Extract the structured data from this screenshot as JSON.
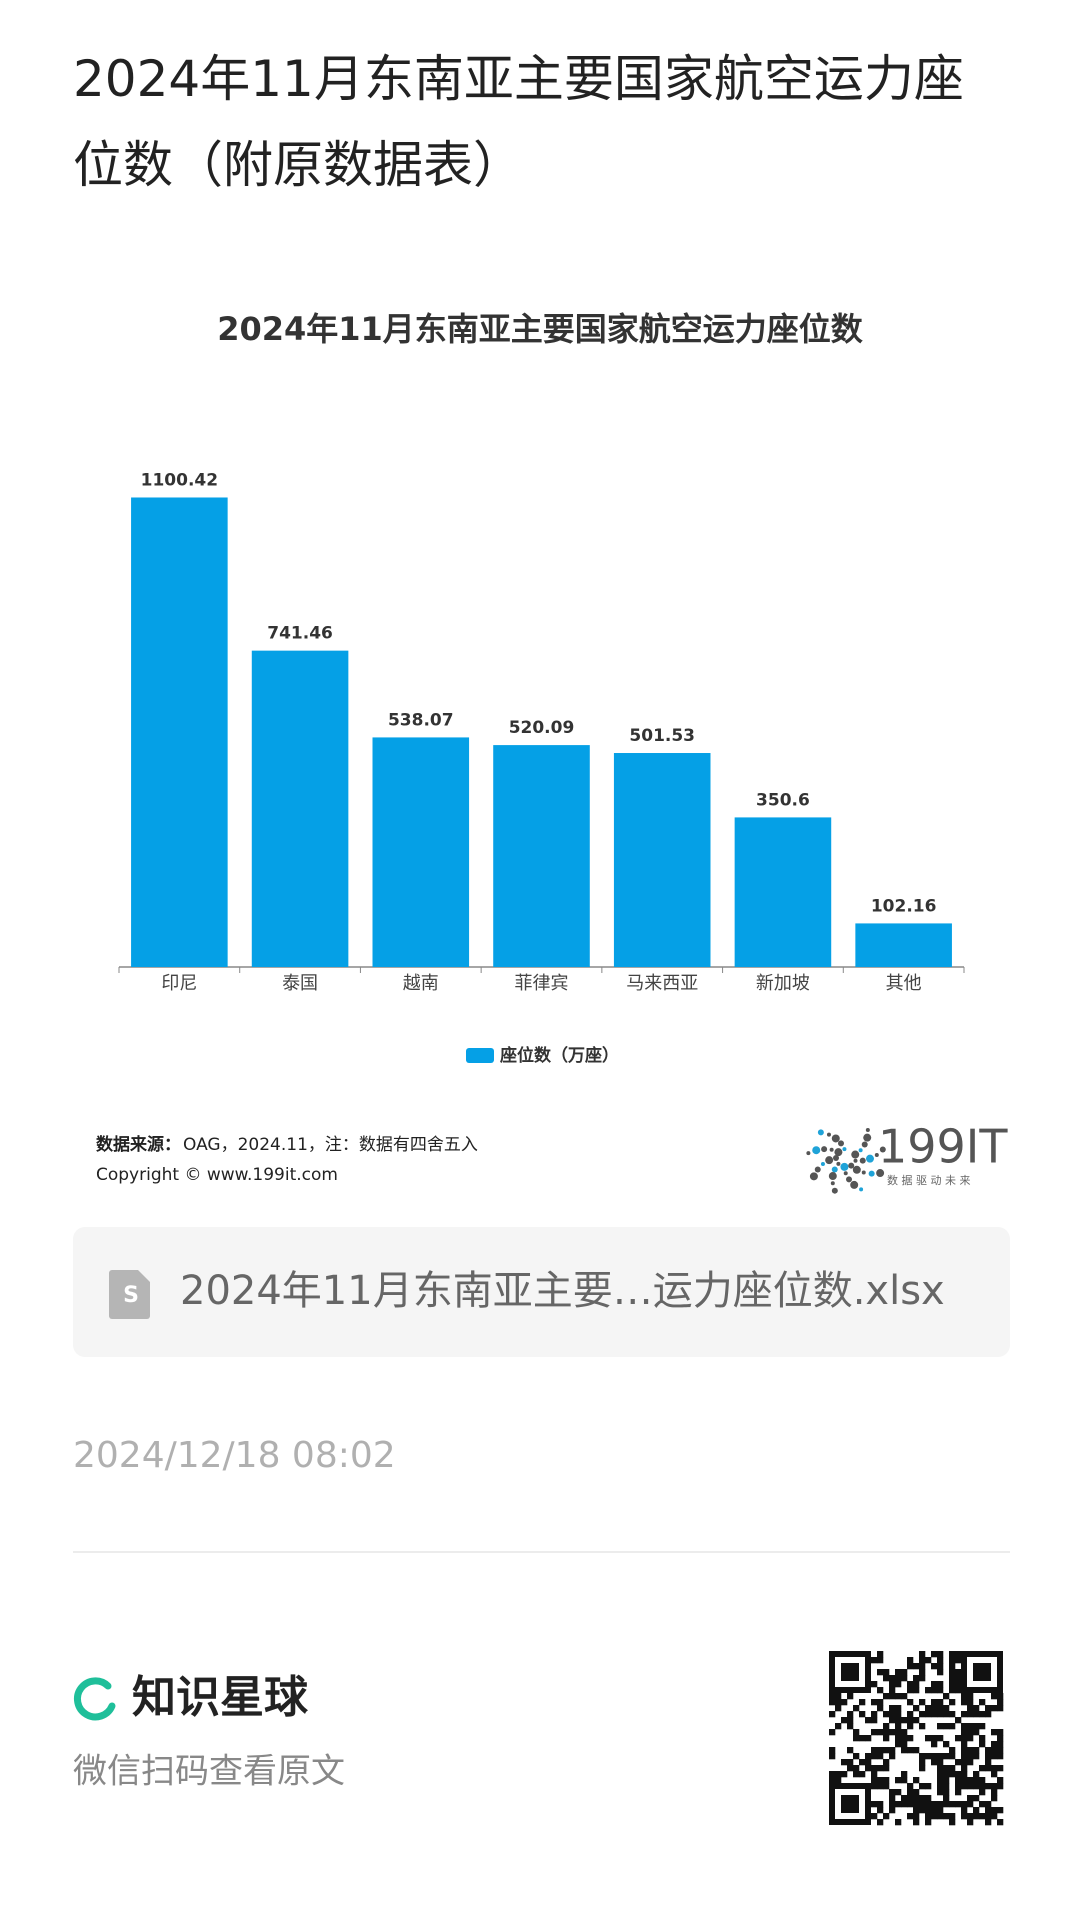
{
  "header": {
    "title": "2024年11月东南亚主要国家航空运力座位数（附原数据表）"
  },
  "chart_data": {
    "type": "bar",
    "title": "2024年11月东南亚主要国家航空运力座位数",
    "categories": [
      "印尼",
      "泰国",
      "越南",
      "菲律宾",
      "马来西亚",
      "新加坡",
      "其他"
    ],
    "series": [
      {
        "name": "座位数（万座）",
        "color": "#05a0e6",
        "values": [
          1100.42,
          741.46,
          538.07,
          520.09,
          501.53,
          350.6,
          102.16
        ]
      }
    ],
    "ylim": [
      0,
      1200
    ],
    "source_label": "数据来源：",
    "source": "OAG，2024.11，注：数据有四舍五入",
    "copyright": "Copyright ©  www.199it.com",
    "logo": {
      "text": "199IT",
      "slogan": "数 据 驱 动 未 来"
    }
  },
  "attachment": {
    "filename": "2024年11月东南亚主要…运力座位数.xlsx"
  },
  "date": "2024/12/18 08:02",
  "footer": {
    "brand": "知识星球",
    "hint": "微信扫码查看原文"
  }
}
